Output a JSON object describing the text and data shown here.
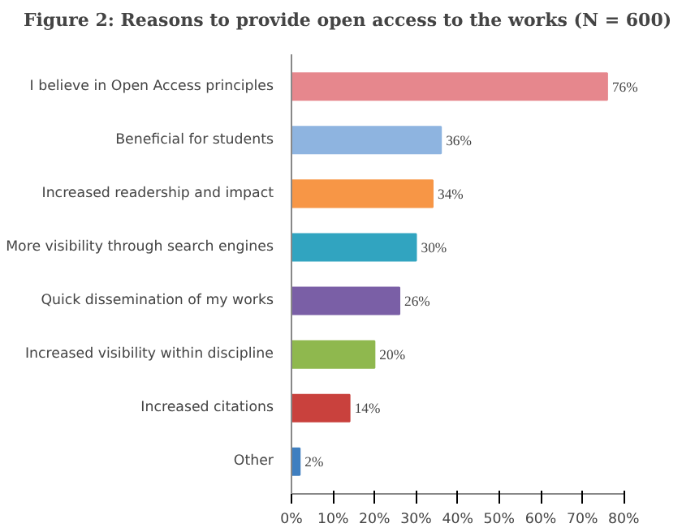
{
  "chart_data": {
    "type": "bar",
    "orientation": "horizontal",
    "title": "Figure 2: Reasons to provide open access to the works (N = 600)",
    "categories": [
      "I believe in Open Access principles",
      "Beneficial for students",
      "Increased readership and impact",
      "More visibility through search engines",
      "Quick dissemination of my works",
      "Increased visibility within discipline",
      "Increased citations",
      "Other"
    ],
    "values": [
      76,
      36,
      34,
      30,
      26,
      20,
      14,
      2
    ],
    "value_labels": [
      "76%",
      "36%",
      "34%",
      "30%",
      "26%",
      "20%",
      "14%",
      "2%"
    ],
    "colors": [
      "#e6878d",
      "#8eb4e0",
      "#f79646",
      "#31a4c0",
      "#7a5fa6",
      "#8fb84e",
      "#c9413d",
      "#3f7fc0"
    ],
    "xlim": [
      0,
      80
    ],
    "xticks": [
      {
        "value": 0,
        "label": "0%"
      },
      {
        "value": 10,
        "label": "10%"
      },
      {
        "value": 20,
        "label": "20%"
      },
      {
        "value": 30,
        "label": "30%"
      },
      {
        "value": 40,
        "label": "40%"
      },
      {
        "value": 50,
        "label": "50%"
      },
      {
        "value": 60,
        "label": "60%"
      },
      {
        "value": 70,
        "label": "70%"
      },
      {
        "value": 80,
        "label": "80%"
      }
    ],
    "grid": false
  }
}
